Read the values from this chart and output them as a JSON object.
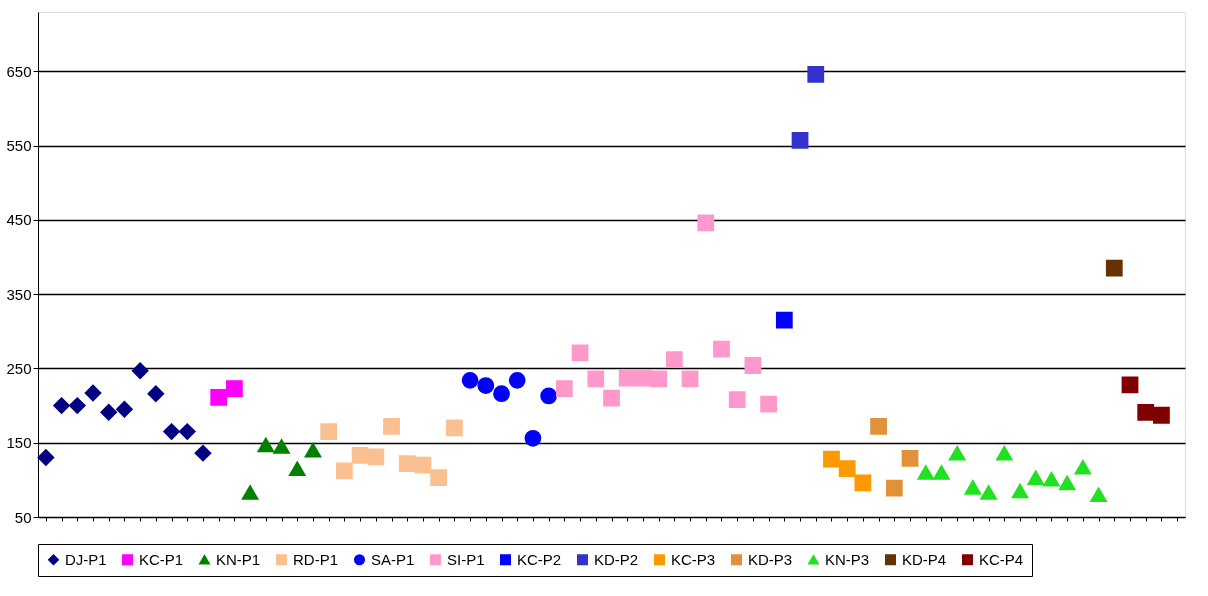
{
  "chart_data": {
    "type": "scatter",
    "categories": [
      null,
      null,
      null,
      null,
      null,
      null,
      null,
      null,
      null,
      null,
      null,
      null,
      null,
      null,
      null,
      null,
      null,
      null,
      null,
      null,
      null,
      null,
      null,
      null,
      null,
      null,
      null,
      null,
      null,
      null,
      null,
      null,
      null,
      null,
      null,
      null,
      null,
      null,
      null,
      null,
      null,
      null,
      null,
      null,
      null,
      null,
      null,
      null,
      null,
      null,
      null,
      null,
      null,
      null,
      null,
      null,
      null,
      null,
      null,
      null,
      null,
      null,
      null,
      null,
      null,
      null,
      null,
      null,
      null,
      null,
      null,
      null,
      null
    ],
    "ylim": [
      50,
      730
    ],
    "yticks": [
      50,
      150,
      250,
      350,
      450,
      550,
      650
    ],
    "grid": "y",
    "legend": "bottom",
    "tick_labels": "y",
    "series": [
      {
        "name": "DJ-P1",
        "color": "#000080",
        "marker": "diamond",
        "values": [
          130,
          200,
          200,
          217,
          191,
          195,
          247,
          216,
          165,
          165,
          136,
          null,
          null,
          null,
          null,
          null,
          null,
          null,
          null,
          null,
          null,
          null,
          null,
          null,
          null,
          null,
          null,
          null,
          null,
          null,
          null,
          null,
          null,
          null,
          null,
          null,
          null,
          null,
          null,
          null,
          null,
          null,
          null,
          null,
          null,
          null,
          null,
          null,
          null,
          null,
          null,
          null,
          null,
          null,
          null,
          null,
          null,
          null,
          null,
          null,
          null,
          null,
          null,
          null,
          null,
          null,
          null,
          null,
          null,
          null,
          null,
          null,
          null
        ]
      },
      {
        "name": "KC-P1",
        "color": "#ff00ff",
        "marker": "square",
        "values": [
          null,
          null,
          null,
          null,
          null,
          null,
          null,
          null,
          null,
          null,
          null,
          211,
          223,
          null,
          null,
          null,
          null,
          null,
          null,
          null,
          null,
          null,
          null,
          null,
          null,
          null,
          null,
          null,
          null,
          null,
          null,
          null,
          null,
          null,
          null,
          null,
          null,
          null,
          null,
          null,
          null,
          null,
          null,
          null,
          null,
          null,
          null,
          null,
          null,
          null,
          null,
          null,
          null,
          null,
          null,
          null,
          null,
          null,
          null,
          null,
          null,
          null,
          null,
          null,
          null,
          null,
          null,
          null,
          null,
          null,
          null,
          null,
          null
        ]
      },
      {
        "name": "KN-P1",
        "color": "#008000",
        "marker": "triangle",
        "values": [
          null,
          null,
          null,
          null,
          null,
          null,
          null,
          null,
          null,
          null,
          null,
          null,
          null,
          83,
          147,
          145,
          115,
          140,
          null,
          null,
          null,
          null,
          null,
          null,
          null,
          null,
          null,
          null,
          null,
          null,
          null,
          null,
          null,
          null,
          null,
          null,
          null,
          null,
          null,
          null,
          null,
          null,
          null,
          null,
          null,
          null,
          null,
          null,
          null,
          null,
          null,
          null,
          null,
          null,
          null,
          null,
          null,
          null,
          null,
          null,
          null,
          null,
          null,
          null,
          null,
          null,
          null,
          null,
          null,
          null,
          null,
          null,
          null
        ]
      },
      {
        "name": "RD-P1",
        "color": "#fac090",
        "marker": "square",
        "values": [
          null,
          null,
          null,
          null,
          null,
          null,
          null,
          null,
          null,
          null,
          null,
          null,
          null,
          null,
          null,
          null,
          null,
          null,
          165,
          112,
          133,
          131,
          172,
          122,
          120,
          103,
          170,
          null,
          null,
          null,
          null,
          null,
          null,
          null,
          null,
          null,
          null,
          null,
          null,
          null,
          null,
          null,
          null,
          null,
          null,
          null,
          null,
          null,
          null,
          null,
          null,
          null,
          null,
          null,
          null,
          null,
          null,
          null,
          null,
          null,
          null,
          null,
          null,
          null,
          null,
          null,
          null,
          null,
          null,
          null,
          null,
          null,
          null
        ]
      },
      {
        "name": "SA-P1",
        "color": "#0000ff",
        "marker": "circle",
        "values": [
          null,
          null,
          null,
          null,
          null,
          null,
          null,
          null,
          null,
          null,
          null,
          null,
          null,
          null,
          null,
          null,
          null,
          null,
          null,
          null,
          null,
          null,
          null,
          null,
          null,
          null,
          null,
          234,
          227,
          216,
          234,
          156,
          213,
          null,
          null,
          null,
          null,
          null,
          null,
          null,
          null,
          null,
          null,
          null,
          null,
          null,
          null,
          null,
          null,
          null,
          null,
          null,
          null,
          null,
          null,
          null,
          null,
          null,
          null,
          null,
          null,
          null,
          null,
          null,
          null,
          null,
          null,
          null,
          null,
          null,
          null,
          null,
          null
        ]
      },
      {
        "name": "SI-P1",
        "color": "#ff99cc",
        "marker": "square",
        "values": [
          null,
          null,
          null,
          null,
          null,
          null,
          null,
          null,
          null,
          null,
          null,
          null,
          null,
          null,
          null,
          null,
          null,
          null,
          null,
          null,
          null,
          null,
          null,
          null,
          null,
          null,
          null,
          null,
          null,
          null,
          null,
          null,
          null,
          223,
          271,
          236,
          210,
          237,
          237,
          236,
          262,
          236,
          446,
          276,
          208,
          254,
          202,
          null,
          null,
          null,
          null,
          null,
          null,
          null,
          null,
          null,
          null,
          null,
          null,
          null,
          null,
          null,
          null,
          null,
          null,
          null,
          null,
          null,
          null,
          null,
          null,
          null,
          null
        ]
      },
      {
        "name": "KC-P2",
        "color": "#0000ff",
        "marker": "square",
        "values": [
          null,
          null,
          null,
          null,
          null,
          null,
          null,
          null,
          null,
          null,
          null,
          null,
          null,
          null,
          null,
          null,
          null,
          null,
          null,
          null,
          null,
          null,
          null,
          null,
          null,
          null,
          null,
          null,
          null,
          null,
          null,
          null,
          null,
          null,
          null,
          null,
          null,
          null,
          null,
          null,
          null,
          null,
          null,
          null,
          null,
          null,
          null,
          315,
          null,
          null,
          null,
          null,
          null,
          null,
          null,
          null,
          null,
          null,
          null,
          null,
          null,
          null,
          null,
          null,
          null,
          null,
          null,
          null,
          null,
          null,
          null,
          null,
          null
        ]
      },
      {
        "name": "KD-P2",
        "color": "#3333cc",
        "marker": "square",
        "values": [
          null,
          null,
          null,
          null,
          null,
          null,
          null,
          null,
          null,
          null,
          null,
          null,
          null,
          null,
          null,
          null,
          null,
          null,
          null,
          null,
          null,
          null,
          null,
          null,
          null,
          null,
          null,
          null,
          null,
          null,
          null,
          null,
          null,
          null,
          null,
          null,
          null,
          null,
          null,
          null,
          null,
          null,
          null,
          null,
          null,
          null,
          null,
          null,
          557,
          646,
          null,
          null,
          null,
          null,
          null,
          null,
          null,
          null,
          null,
          null,
          null,
          null,
          null,
          null,
          null,
          null,
          null,
          null,
          null,
          null,
          null,
          null,
          null
        ]
      },
      {
        "name": "KC-P3",
        "color": "#ff9900",
        "marker": "square",
        "values": [
          null,
          null,
          null,
          null,
          null,
          null,
          null,
          null,
          null,
          null,
          null,
          null,
          null,
          null,
          null,
          null,
          null,
          null,
          null,
          null,
          null,
          null,
          null,
          null,
          null,
          null,
          null,
          null,
          null,
          null,
          null,
          null,
          null,
          null,
          null,
          null,
          null,
          null,
          null,
          null,
          null,
          null,
          null,
          null,
          null,
          null,
          null,
          null,
          null,
          null,
          128,
          115,
          96,
          null,
          null,
          null,
          null,
          null,
          null,
          null,
          null,
          null,
          null,
          null,
          null,
          null,
          null,
          null,
          null,
          null,
          null,
          null,
          null
        ]
      },
      {
        "name": "KD-P3",
        "color": "#e0913a",
        "marker": "square",
        "values": [
          null,
          null,
          null,
          null,
          null,
          null,
          null,
          null,
          null,
          null,
          null,
          null,
          null,
          null,
          null,
          null,
          null,
          null,
          null,
          null,
          null,
          null,
          null,
          null,
          null,
          null,
          null,
          null,
          null,
          null,
          null,
          null,
          null,
          null,
          null,
          null,
          null,
          null,
          null,
          null,
          null,
          null,
          null,
          null,
          null,
          null,
          null,
          null,
          null,
          null,
          null,
          null,
          null,
          172,
          89,
          129,
          null,
          null,
          null,
          null,
          null,
          null,
          null,
          null,
          null,
          null,
          null,
          null,
          null,
          null,
          null,
          null,
          null
        ]
      },
      {
        "name": "KN-P3",
        "color": "#22e022",
        "marker": "triangle",
        "values": [
          null,
          null,
          null,
          null,
          null,
          null,
          null,
          null,
          null,
          null,
          null,
          null,
          null,
          null,
          null,
          null,
          null,
          null,
          null,
          null,
          null,
          null,
          null,
          null,
          null,
          null,
          null,
          null,
          null,
          null,
          null,
          null,
          null,
          null,
          null,
          null,
          null,
          null,
          null,
          null,
          null,
          null,
          null,
          null,
          null,
          null,
          null,
          null,
          null,
          null,
          null,
          null,
          null,
          null,
          null,
          null,
          110,
          110,
          136,
          90,
          83,
          136,
          85,
          103,
          101,
          96,
          117,
          80,
          null,
          null,
          null,
          null,
          null
        ]
      },
      {
        "name": "KD-P4",
        "color": "#663300",
        "marker": "square",
        "values": [
          null,
          null,
          null,
          null,
          null,
          null,
          null,
          null,
          null,
          null,
          null,
          null,
          null,
          null,
          null,
          null,
          null,
          null,
          null,
          null,
          null,
          null,
          null,
          null,
          null,
          null,
          null,
          null,
          null,
          null,
          null,
          null,
          null,
          null,
          null,
          null,
          null,
          null,
          null,
          null,
          null,
          null,
          null,
          null,
          null,
          null,
          null,
          null,
          null,
          null,
          null,
          null,
          null,
          null,
          null,
          null,
          null,
          null,
          null,
          null,
          null,
          null,
          null,
          null,
          null,
          null,
          null,
          null,
          385,
          null,
          null,
          null,
          null
        ]
      },
      {
        "name": "KC-P4",
        "color": "#800000",
        "marker": "square",
        "values": [
          null,
          null,
          null,
          null,
          null,
          null,
          null,
          null,
          null,
          null,
          null,
          null,
          null,
          null,
          null,
          null,
          null,
          null,
          null,
          null,
          null,
          null,
          null,
          null,
          null,
          null,
          null,
          null,
          null,
          null,
          null,
          null,
          null,
          null,
          null,
          null,
          null,
          null,
          null,
          null,
          null,
          null,
          null,
          null,
          null,
          null,
          null,
          null,
          null,
          null,
          null,
          null,
          null,
          null,
          null,
          null,
          null,
          null,
          null,
          null,
          null,
          null,
          null,
          null,
          null,
          null,
          null,
          null,
          null,
          228,
          191,
          187,
          null
        ]
      }
    ]
  }
}
